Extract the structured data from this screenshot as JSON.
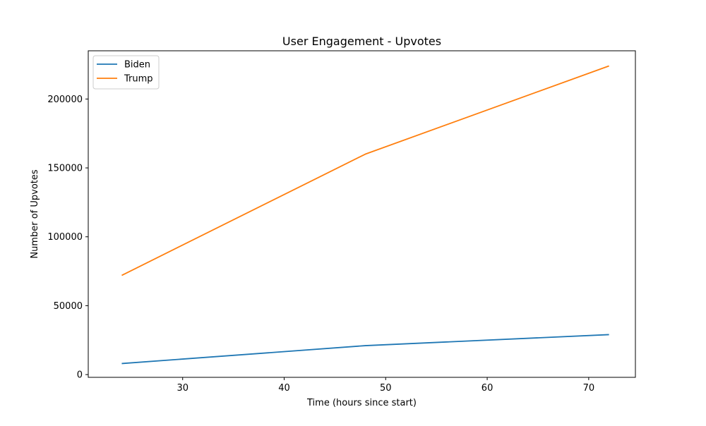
{
  "chart_data": {
    "type": "line",
    "title": "User Engagement - Upvotes",
    "xlabel": "Time (hours since start)",
    "ylabel": "Number of Upvotes",
    "x": [
      24,
      48,
      72
    ],
    "xlim": [
      20.7,
      74.6
    ],
    "ylim": [
      -2000,
      235000
    ],
    "xticks": [
      30,
      40,
      50,
      60,
      70
    ],
    "yticks": [
      0,
      50000,
      100000,
      150000,
      200000
    ],
    "xtick_labels": [
      "30",
      "40",
      "50",
      "60",
      "70"
    ],
    "ytick_labels": [
      "0",
      "50000",
      "100000",
      "150000",
      "200000"
    ],
    "grid": false,
    "legend_position": "upper-left",
    "series": [
      {
        "name": "Biden",
        "color": "#1f77b4",
        "values": [
          8000,
          21000,
          29000
        ]
      },
      {
        "name": "Trump",
        "color": "#ff7f0e",
        "values": [
          72000,
          160000,
          224000
        ]
      }
    ]
  }
}
